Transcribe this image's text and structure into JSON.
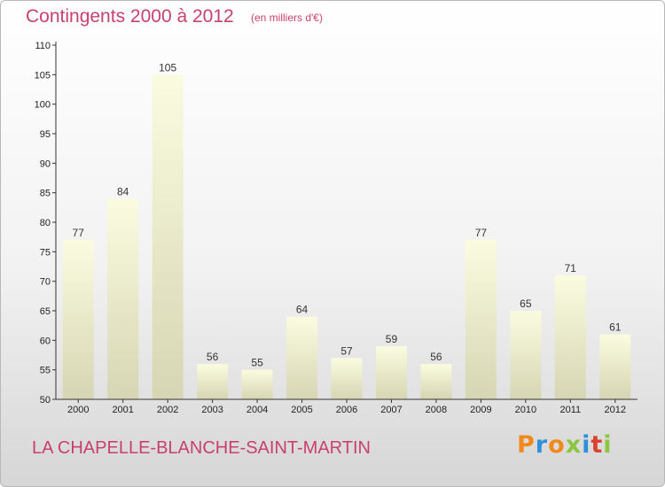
{
  "header": {
    "title": "Contingents 2000 à 2012",
    "unit_note": "(en milliers d'€)"
  },
  "footer": {
    "commune": "LA CHAPELLE-BLANCHE-SAINT-MARTIN",
    "brand": "Proxiti"
  },
  "colors": {
    "title": "#c8416c",
    "bar_top": "#fbfbe0",
    "bar_bottom": "#d6d6b4",
    "axis": "#333333",
    "brand_letters": [
      "#f08a1c",
      "#2f8fd8",
      "#f08a1c",
      "#8cc63f",
      "#2f8fd8",
      "#d8432f",
      "#8cc63f"
    ]
  },
  "chart_data": {
    "type": "bar",
    "title": "Contingents 2000 à 2012",
    "subtitle": "(en milliers d'€)",
    "xlabel": "",
    "ylabel": "",
    "categories": [
      "2000",
      "2001",
      "2002",
      "2003",
      "2004",
      "2005",
      "2006",
      "2007",
      "2008",
      "2009",
      "2010",
      "2011",
      "2012"
    ],
    "values": [
      77,
      84,
      105,
      56,
      55,
      64,
      57,
      59,
      56,
      77,
      65,
      71,
      61
    ],
    "ylim": [
      50,
      110
    ],
    "yticks": [
      50,
      55,
      60,
      65,
      70,
      75,
      80,
      85,
      90,
      95,
      100,
      105,
      110
    ],
    "grid": false,
    "legend": "none"
  }
}
